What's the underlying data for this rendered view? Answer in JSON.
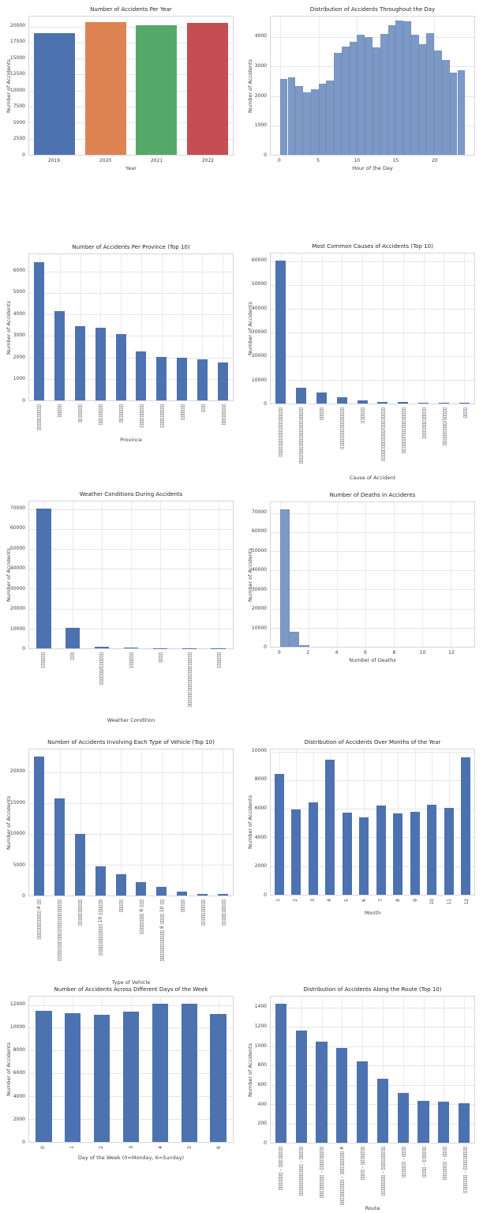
{
  "figure": {
    "background": "#ffffff",
    "grid_color": "#e4e4ec",
    "axes_border_color": "#d5d5df",
    "text_color": "#3d3d46",
    "title_color": "#262626",
    "bar_blue": "#4c72b0",
    "hist_fill": "#7d99c6",
    "hist_edge": "#6b89ba",
    "note_glyphs": "thai-labels-render-as-tofu-boxes"
  },
  "chart_data": [
    {
      "id": "accidents-per-year",
      "type": "bar",
      "title": "Number of Accidents Per Year",
      "xlabel": "Year",
      "ylabel": "Number of Accidents",
      "categories": [
        "2019",
        "2020",
        "2021",
        "2022"
      ],
      "values": [
        18920,
        20660,
        20140,
        20560
      ],
      "bar_colors": [
        "#4c72b0",
        "#dd8452",
        "#55a868",
        "#c44e52"
      ],
      "yticks": [
        0,
        2500,
        5000,
        7500,
        10000,
        12500,
        15000,
        17500,
        20000
      ],
      "ylim": [
        0,
        21550
      ],
      "xtick_rotation": 0,
      "bar_frac": 0.8,
      "xgrid": false
    },
    {
      "id": "accidents-by-hour",
      "type": "hist",
      "title": "Distribution of Accidents Throughout the Day",
      "xlabel": "Hour of the Day",
      "ylabel": "Number of Accidents",
      "bin_start": 0,
      "bin_width": 1,
      "values": [
        2590,
        2640,
        2350,
        2120,
        2230,
        2430,
        2520,
        3470,
        3680,
        3850,
        4090,
        3990,
        3660,
        4110,
        4400,
        4560,
        4540,
        4090,
        3760,
        4130,
        3550,
        3210,
        2790,
        2870
      ],
      "yticks": [
        0,
        1000,
        2000,
        3000,
        4000
      ],
      "ylim": [
        0,
        4700
      ],
      "xticks": [
        0,
        5,
        10,
        15,
        20
      ],
      "xlim": [
        -1.2,
        25.2
      ],
      "color": "#7d99c6"
    },
    {
      "id": "accidents-per-province",
      "type": "bar",
      "title": "Number of Accidents Per Province (Top 10)",
      "xlabel": "Province",
      "ylabel": "Number of Accidents",
      "categories": [
        "▯▯▯▯▯▯▯▯▯▯",
        "▯▯▯▯▯",
        "▯▯▯▯▯▯▯",
        "▯▯▯▯▯▯▯▯",
        "▯▯▯▯▯▯▯",
        "▯▯▯▯▯▯▯▯▯",
        "▯▯▯▯▯▯▯▯▯",
        "▯▯▯▯▯▯",
        "▯▯▯",
        "▯▯▯▯▯▯▯▯"
      ],
      "values": [
        6440,
        4150,
        3450,
        3370,
        3090,
        2270,
        2030,
        1970,
        1900,
        1760
      ],
      "bar_colors": null,
      "color": "#4c72b0",
      "yticks": [
        0,
        1000,
        2000,
        3000,
        4000,
        5000,
        6000
      ],
      "ylim": [
        0,
        6790
      ],
      "xtick_rotation": 90,
      "bar_frac": 0.5,
      "xgrid": true
    },
    {
      "id": "accident-causes",
      "type": "bar",
      "title": "Most Common Causes of Accidents (Top 10)",
      "xlabel": "Cause of Accident",
      "ylabel": "Number of Accidents",
      "categories": [
        "▯▯▯▯▯▯▯▯▯▯▯▯▯▯▯▯▯▯▯",
        "▯▯▯/▯▯▯▯▯▯▯▯▯▯▯▯▯▯▯▯▯▯",
        "▯▯▯▯▯",
        "▯▯▯▯▯▯▯▯▯▯▯▯▯▯▯▯",
        "▯▯▯▯▯▯",
        "▯▯▯▯▯▯▯▯▯▯▯▯/▯▯▯▯▯▯▯▯",
        "▯▯▯▯▯▯/▯▯▯▯▯▯▯▯▯▯▯",
        "▯▯▯▯▯▯▯▯▯▯▯▯",
        "▯▯▯▯▯▯▯▯▯/▯▯▯▯▯",
        "▯▯▯▯"
      ],
      "values": [
        60250,
        6800,
        4800,
        2700,
        1300,
        800,
        650,
        500,
        400,
        300
      ],
      "bar_colors": null,
      "color": "#4c72b0",
      "yticks": [
        0,
        10000,
        20000,
        30000,
        40000,
        50000,
        60000
      ],
      "ylim": [
        0,
        63300
      ],
      "xtick_rotation": 90,
      "bar_frac": 0.5,
      "xgrid": true
    },
    {
      "id": "weather-conditions",
      "type": "bar",
      "title": "Weather Conditions During Accidents",
      "xlabel": "Weather Condition",
      "ylabel": "Number of Accidents",
      "categories": [
        "▯▯▯▯▯▯",
        "▯▯▯",
        "▯▯▯▯▯▯/▯▯▯▯▯▯",
        "▯▯▯▯▯▯",
        "▯▯▯▯",
        "▯▯▯▯▯▯▯▯▯▯▯▯▯▯▯▯▯▯▯▯▯",
        "▯▯▯▯▯▯"
      ],
      "values": [
        70300,
        10500,
        800,
        550,
        150,
        80,
        40
      ],
      "bar_colors": null,
      "color": "#4c72b0",
      "yticks": [
        0,
        10000,
        20000,
        30000,
        40000,
        50000,
        60000,
        70000
      ],
      "ylim": [
        0,
        73800
      ],
      "xtick_rotation": 90,
      "bar_frac": 0.5,
      "xgrid": true
    },
    {
      "id": "deaths-histogram",
      "type": "hist",
      "title": "Number of Deaths in Accidents",
      "xlabel": "Number of Deaths",
      "ylabel": "Number of Accidents",
      "bin_start": 0,
      "bin_width": 0.684,
      "values": [
        72000,
        7800,
        890,
        0,
        0,
        0,
        0,
        0,
        0,
        0,
        0,
        0,
        0,
        0,
        0,
        0,
        0,
        0,
        0
      ],
      "yticks": [
        0,
        10000,
        20000,
        30000,
        40000,
        50000,
        60000,
        70000
      ],
      "ylim": [
        0,
        75600
      ],
      "xticks": [
        0,
        2,
        4,
        6,
        8,
        10,
        12
      ],
      "xlim": [
        -0.65,
        13.65
      ],
      "color": "#7d99c6"
    },
    {
      "id": "vehicle-types",
      "type": "bar",
      "title": "Number of Accidents Involving Each Type of Vehicle (Top 10)",
      "xlabel": "Type of Vehicle",
      "ylabel": "Number of Accidents",
      "categories": [
        "▯▯▯▯▯▯▯▯▯▯▯ 4 ▯▯",
        "▯▯▯▯▯▯▯▯▯▯▯▯/▯▯▯▯▯▯▯▯▯▯▯",
        "▯▯▯▯▯▯▯▯▯▯",
        "▯▯▯▯▯▯▯▯▯▯▯▯ 10 ▯▯▯▯▯▯",
        "▯▯▯▯▯",
        "▯▯▯▯▯▯▯▯ 6 ▯▯▯",
        "▯▯▯▯▯▯▯▯▯▯▯▯ 6 ▯▯▯▯ 10 ▯▯",
        "▯▯▯▯▯",
        "▯▯▯▯▯▯▯▯▯▯",
        "▯▯▯▯▯▯▯▯▯▯"
      ],
      "values": [
        22500,
        15800,
        9950,
        4750,
        3400,
        2150,
        1400,
        600,
        300,
        250
      ],
      "bar_colors": null,
      "color": "#4c72b0",
      "yticks": [
        0,
        5000,
        10000,
        15000,
        20000
      ],
      "ylim": [
        0,
        23700
      ],
      "xtick_rotation": 90,
      "bar_frac": 0.5,
      "xgrid": true
    },
    {
      "id": "accidents-by-month",
      "type": "bar",
      "title": "Distribution of Accidents Over Months of the Year",
      "xlabel": "Month",
      "ylabel": "Number of Accidents",
      "categories": [
        "1",
        "2",
        "3",
        "4",
        "5",
        "6",
        "7",
        "8",
        "9",
        "10",
        "11",
        "12"
      ],
      "values": [
        8450,
        5960,
        6470,
        9420,
        5730,
        5390,
        6220,
        5690,
        5780,
        6270,
        6070,
        9590
      ],
      "bar_colors": null,
      "color": "#4c72b0",
      "yticks": [
        0,
        2000,
        4000,
        6000,
        8000,
        10000
      ],
      "ylim": [
        0,
        10150
      ],
      "xtick_rotation": 90,
      "bar_frac": 0.55,
      "xgrid": true
    },
    {
      "id": "accidents-by-weekday",
      "type": "bar",
      "title": "Number of Accidents Across Different Days of the Week",
      "xlabel": "Day of the Week (0=Monday, 6=Sunday)",
      "ylabel": "Number of Accidents",
      "categories": [
        "0",
        "1",
        "2",
        "3",
        "4",
        "5",
        "6"
      ],
      "values": [
        11480,
        11280,
        11130,
        11430,
        12120,
        12100,
        11190
      ],
      "bar_colors": null,
      "color": "#4c72b0",
      "yticks": [
        0,
        2000,
        4000,
        6000,
        8000,
        10000,
        12000
      ],
      "ylim": [
        0,
        12730
      ],
      "xtick_rotation": 90,
      "bar_frac": 0.55,
      "xgrid": true
    },
    {
      "id": "accidents-by-route",
      "type": "bar",
      "title": "Distribution of Accidents Along the Route (Top 10)",
      "xlabel": "Route",
      "ylabel": "Number of Accidents",
      "categories": [
        "▯▯▯▯▯▯▯ - ▯▯▯▯▯▯▯▯",
        "▯▯▯▯▯▯▯▯▯▯▯▯ - ▯▯▯▯▯",
        "▯▯▯▯▯▯▯▯▯ - ▯▯▯▯▯▯▯▯▯",
        "▯▯▯▯▯▯▯▯▯▯ - ▯▯▯▯▯▯▯▯▯ 4",
        "▯▯▯▯ - ▯▯▯▯▯▯▯",
        "▯▯▯▯▯▯▯▯ - ▯▯▯▯▯▯▯▯▯",
        "▯▯▯▯▯▯ - ▯▯▯▯",
        "▯▯▯▯ - ▯▯▯▯▯▯",
        "▯▯▯▯▯▯▯ - ▯▯▯▯",
        "▯▯▯▯▯▯▯ - ▯▯▯▯▯▯▯▯▯"
      ],
      "values": [
        1440,
        1160,
        1045,
        980,
        840,
        665,
        520,
        435,
        425,
        410
      ],
      "bar_colors": null,
      "color": "#4c72b0",
      "yticks": [
        0,
        200,
        400,
        600,
        800,
        1000,
        1200,
        1400
      ],
      "ylim": [
        0,
        1515
      ],
      "xtick_rotation": 90,
      "bar_frac": 0.55,
      "xgrid": true
    }
  ]
}
